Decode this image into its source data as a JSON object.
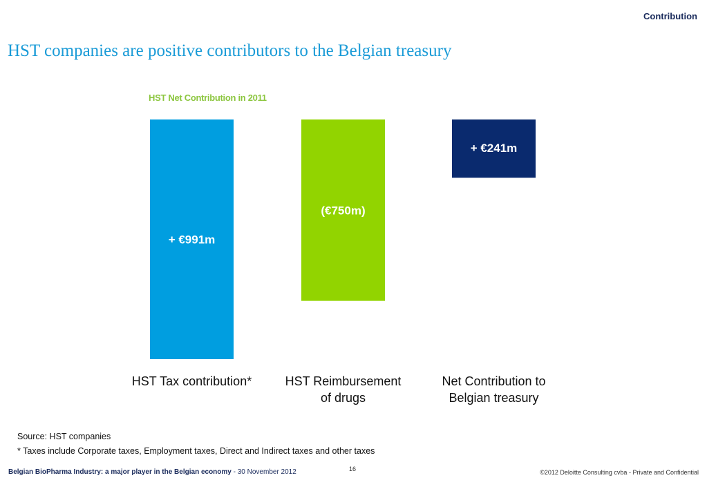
{
  "header": {
    "section_label": "Contribution",
    "title": "HST companies are positive contributors to the Belgian treasury"
  },
  "chart_data": {
    "type": "bar",
    "subtype": "waterfall",
    "title": "HST Net Contribution in 2011",
    "categories": [
      "HST Tax contribution*",
      "HST Reimbursement of drugs",
      "Net Contribution to Belgian treasury"
    ],
    "category_lines": [
      [
        "HST Tax contribution*"
      ],
      [
        "HST Reimbursement",
        "of drugs"
      ],
      [
        "Net Contribution to",
        "Belgian treasury"
      ]
    ],
    "values": [
      991,
      -750,
      241
    ],
    "data_labels": [
      "+ €991m",
      "(€750m)",
      "+ €241m"
    ],
    "colors": [
      "#009ee0",
      "#92d400",
      "#0a2a6e"
    ],
    "ylim": [
      0,
      991
    ],
    "grid": false,
    "legend": "none",
    "xlabel": "",
    "ylabel": ""
  },
  "footer": {
    "source": "Source: HST companies",
    "note": "* Taxes include Corporate taxes, Employment taxes, Direct and Indirect taxes and other taxes",
    "report_title": "Belgian BioPharma Industry: a major player in the Belgian economy",
    "date": " - 30 November 2012",
    "page_number": "16",
    "copyright": "©2012 Deloitte Consulting cvba - Private and Confidential"
  }
}
